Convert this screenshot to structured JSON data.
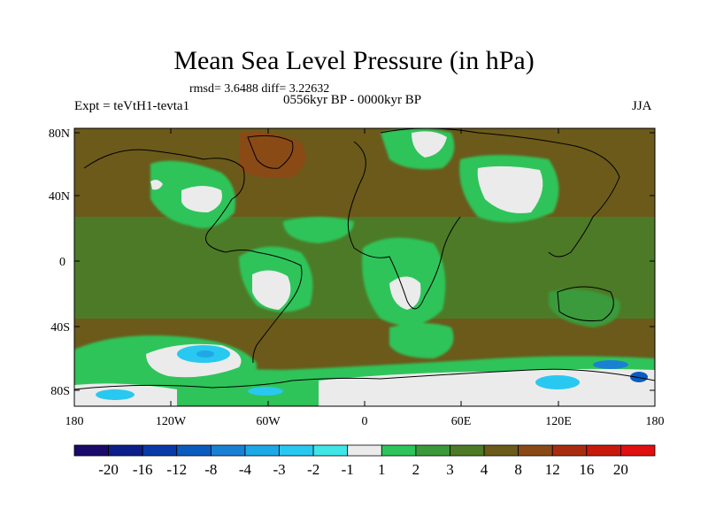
{
  "title": "Mean Sea Level Pressure (in hPa)",
  "stats_line": "rmsd= 3.6488 diff= 3.22632",
  "period": "0556kyr BP - 0000kyr BP",
  "experiment": "Expt = teVtH1-tevta1",
  "season": "JJA",
  "chart_data": {
    "type": "heatmap",
    "title": "Mean Sea Level Pressure (in hPa)",
    "x_ticks": [
      "180",
      "120W",
      "60W",
      "0",
      "60E",
      "120E",
      "180"
    ],
    "y_ticks": [
      "80N",
      "40N",
      "0",
      "40S",
      "80S"
    ],
    "x_range": [
      -180,
      180
    ],
    "y_range": [
      -90,
      90
    ],
    "colorbar": {
      "labels": [
        "-20",
        "-16",
        "-12",
        "-8",
        "-4",
        "-3",
        "-2",
        "-1",
        "1",
        "2",
        "3",
        "4",
        "8",
        "12",
        "16",
        "20"
      ],
      "colors": [
        "#1a0a6b",
        "#0b1e8a",
        "#0a3aa8",
        "#0b5cbf",
        "#1a80d4",
        "#1fa8e6",
        "#29c8f0",
        "#40e6e6",
        "#ebebeb",
        "#2ec45a",
        "#3a9a3a",
        "#4d7a26",
        "#6b5a1a",
        "#8a4a16",
        "#a82d10",
        "#c81a0c",
        "#e01010"
      ]
    }
  }
}
